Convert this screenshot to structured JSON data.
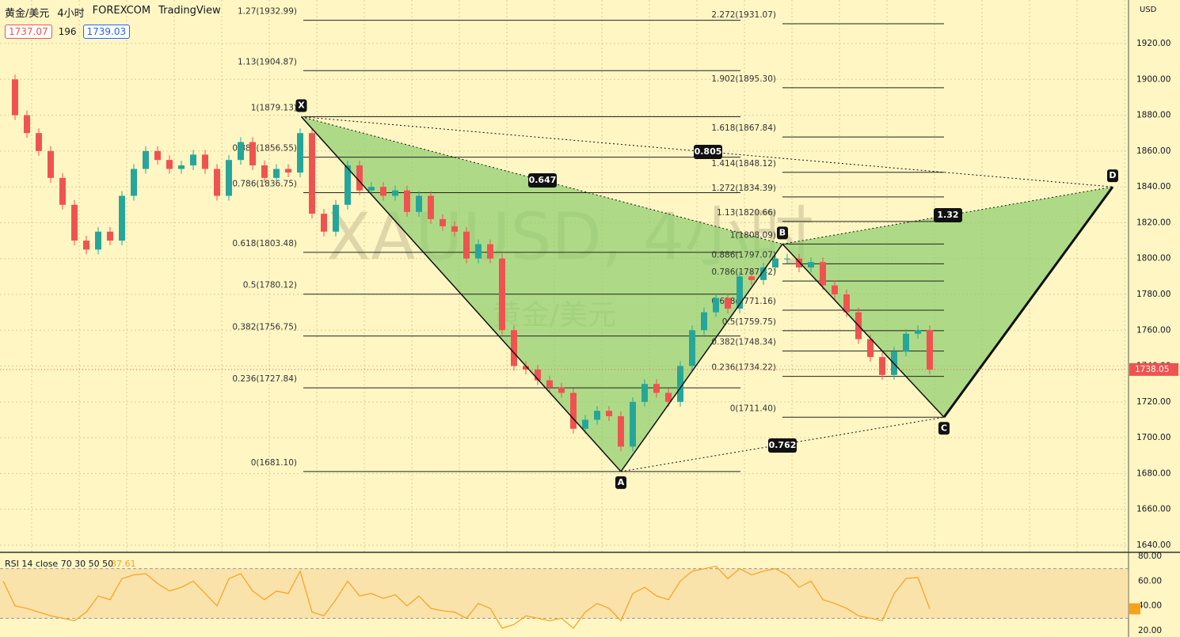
{
  "header": {
    "symbol": "黄金/美元",
    "interval": "4小时",
    "exchange": "FOREXCOM",
    "source": "TradingView",
    "sell": "1737.07",
    "spread": "196",
    "buy": "1739.03",
    "currency": "USD"
  },
  "watermark": {
    "symbol": "XAUUSD, 4小时",
    "name": "黄金/美元"
  },
  "chart_data": {
    "type": "candlestick",
    "values": [
      1900,
      1880,
      1870,
      1860,
      1845,
      1830,
      1810,
      1805,
      1815,
      1810,
      1835,
      1850,
      1860,
      1855,
      1850,
      1852,
      1858,
      1850,
      1835,
      1855,
      1865,
      1852,
      1845,
      1850,
      1848,
      1870,
      1825,
      1815,
      1830,
      1852,
      1838,
      1840,
      1835,
      1838,
      1826,
      1835,
      1822,
      1818,
      1815,
      1800,
      1808,
      1800,
      1760,
      1740,
      1738,
      1732,
      1728,
      1725,
      1705,
      1710,
      1715,
      1712,
      1695,
      1720,
      1730,
      1725,
      1720,
      1740,
      1760,
      1770,
      1778,
      1772,
      1790,
      1788,
      1795,
      1800,
      1800,
      1795,
      1798,
      1785,
      1780,
      1770,
      1755,
      1745,
      1735,
      1748,
      1758,
      1760,
      1738
    ],
    "ylim": [
      1636,
      1944.3
    ],
    "yticks": [
      {
        "value": 1640,
        "label": "1640.00"
      },
      {
        "value": 1660,
        "label": "1660.00"
      },
      {
        "value": 1680,
        "label": "1680.00"
      },
      {
        "value": 1700,
        "label": "1700.00"
      },
      {
        "value": 1720,
        "label": "1720.00"
      },
      {
        "value": 1740,
        "label": "1740.00"
      },
      {
        "value": 1760,
        "label": "1760.00"
      },
      {
        "value": 1780,
        "label": "1780.00"
      },
      {
        "value": 1800,
        "label": "1800.00"
      },
      {
        "value": 1820,
        "label": "1820.00"
      },
      {
        "value": 1840,
        "label": "1840.00"
      },
      {
        "value": 1860,
        "label": "1860.00"
      },
      {
        "value": 1880,
        "label": "1880.00"
      },
      {
        "value": 1900,
        "label": "1900.00"
      },
      {
        "value": 1920,
        "label": "1920.00"
      }
    ],
    "grid": true,
    "last_price": 1738.05,
    "fib_xa": [
      {
        "label": "1.27(1932.99)",
        "price": 1932.99
      },
      {
        "label": "1.13(1904.87)",
        "price": 1904.87
      },
      {
        "label": "1(1879.13)",
        "price": 1879.13
      },
      {
        "label": "0.886(1856.55)",
        "price": 1856.55
      },
      {
        "label": "0.786(1836.75)",
        "price": 1836.75
      },
      {
        "label": "0.618(1803.48)",
        "price": 1803.48
      },
      {
        "label": "0.5(1780.12)",
        "price": 1780.12
      },
      {
        "label": "0.382(1756.75)",
        "price": 1756.75
      },
      {
        "label": "0.236(1727.84)",
        "price": 1727.84
      },
      {
        "label": "0(1681.10)",
        "price": 1681.1
      }
    ],
    "fib_bc": [
      {
        "label": "2.272(1931.07)",
        "price": 1931.07
      },
      {
        "label": "1.902(1895.30)",
        "price": 1895.3
      },
      {
        "label": "1.618(1867.84)",
        "price": 1867.84
      },
      {
        "label": "1.414(1848.12)",
        "price": 1848.12
      },
      {
        "label": "1.272(1834.39)",
        "price": 1834.39
      },
      {
        "label": "1.13(1820.66)",
        "price": 1820.66
      },
      {
        "label": "1(1808.09)",
        "price": 1808.09
      },
      {
        "label": "0.886(1797.07)",
        "price": 1797.07
      },
      {
        "label": "0.786(1787.42)",
        "price": 1787.42
      },
      {
        "label": "0.618(1771.16)",
        "price": 1771.16
      },
      {
        "label": "0.5(1759.75)",
        "price": 1759.75
      },
      {
        "label": "0.382(1748.34)",
        "price": 1748.34
      },
      {
        "label": "0.236(1734.22)",
        "price": 1734.22
      },
      {
        "label": "0(1711.40)",
        "price": 1711.4
      }
    ],
    "pattern": [
      {
        "label": "X",
        "price": 1879.13
      },
      {
        "label": "A",
        "price": 1681.1
      },
      {
        "label": "B",
        "price": 1808.09
      },
      {
        "label": "C",
        "price": 1711.4
      },
      {
        "label": "D",
        "price": 1840
      }
    ],
    "ratios": [
      0.647,
      0.805,
      1.32,
      0.762
    ]
  },
  "rsi": {
    "title": "RSI 14 close 70 30 50 50",
    "last": 37.61,
    "values": [
      60,
      40,
      38,
      35,
      32,
      30,
      28,
      35,
      48,
      45,
      62,
      65,
      66,
      58,
      52,
      55,
      60,
      50,
      40,
      62,
      66,
      52,
      45,
      52,
      50,
      68,
      35,
      32,
      45,
      60,
      48,
      50,
      46,
      49,
      40,
      48,
      38,
      36,
      35,
      30,
      42,
      38,
      22,
      25,
      32,
      30,
      28,
      30,
      22,
      35,
      42,
      38,
      28,
      50,
      55,
      48,
      45,
      60,
      68,
      70,
      72,
      62,
      70,
      65,
      68,
      70,
      65,
      55,
      60,
      45,
      42,
      38,
      32,
      30,
      28,
      50,
      62,
      63,
      37.61
    ],
    "ylim": [
      14.9,
      83.2
    ],
    "yticks": [
      {
        "value": 20,
        "label": "20.00"
      },
      {
        "value": 40,
        "label": "40.00"
      },
      {
        "value": 60,
        "label": "60.00"
      },
      {
        "value": 80,
        "label": "80.00"
      }
    ],
    "bands": [
      30,
      70
    ]
  }
}
